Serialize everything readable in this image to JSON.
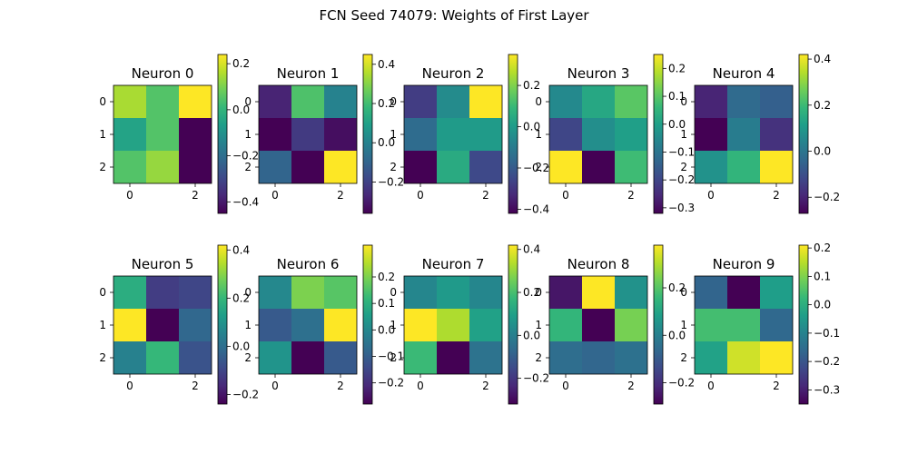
{
  "figure": {
    "title": "FCN Seed 74079: Weights of First Layer"
  },
  "colormap": {
    "name": "viridis",
    "stops": [
      "#440154",
      "#482878",
      "#3e4989",
      "#31688e",
      "#26828e",
      "#1f9e89",
      "#35b779",
      "#6ece58",
      "#b5de2b",
      "#fde725"
    ]
  },
  "chart_data": [
    {
      "type": "heatmap",
      "title": "Neuron 0",
      "x_ticks": [
        "0",
        "2"
      ],
      "y_ticks": [
        "0",
        "1",
        "2"
      ],
      "values": [
        [
          0.15,
          0.05,
          0.24
        ],
        [
          -0.05,
          0.05,
          -0.45
        ],
        [
          0.05,
          0.13,
          -0.45
        ]
      ],
      "vmin": -0.45,
      "vmax": 0.24,
      "colorbar_ticks": [
        -0.4,
        -0.2,
        0.0,
        0.2
      ],
      "colorbar_labels": [
        "−0.4",
        "−0.2",
        "0.0",
        "0.2"
      ]
    },
    {
      "type": "heatmap",
      "title": "Neuron 1",
      "x_ticks": [
        "0",
        "2"
      ],
      "y_ticks": [
        "0",
        "1",
        "2"
      ],
      "values": [
        [
          -0.28,
          0.22,
          0.0
        ],
        [
          -0.36,
          -0.22,
          -0.33
        ],
        [
          -0.1,
          -0.36,
          0.45
        ]
      ],
      "vmin": -0.36,
      "vmax": 0.45,
      "colorbar_ticks": [
        -0.2,
        0.0,
        0.2,
        0.4
      ],
      "colorbar_labels": [
        "−0.2",
        "0.0",
        "0.2",
        "0.4"
      ]
    },
    {
      "type": "heatmap",
      "title": "Neuron 2",
      "x_ticks": [
        "0",
        "2"
      ],
      "y_ticks": [
        "0",
        "1",
        "2"
      ],
      "values": [
        [
          -0.28,
          -0.05,
          0.35
        ],
        [
          -0.15,
          0.0,
          0.0
        ],
        [
          -0.42,
          0.05,
          -0.25
        ]
      ],
      "vmin": -0.42,
      "vmax": 0.35,
      "colorbar_ticks": [
        -0.4,
        -0.2,
        0.0,
        0.2
      ],
      "colorbar_labels": [
        "−0.4",
        "−0.2",
        "0.0",
        "0.2"
      ]
    },
    {
      "type": "heatmap",
      "title": "Neuron 3",
      "x_ticks": [
        "0",
        "2"
      ],
      "y_ticks": [
        "0",
        "1",
        "2"
      ],
      "values": [
        [
          -0.05,
          0.02,
          0.1
        ],
        [
          -0.2,
          -0.04,
          0.0
        ],
        [
          0.25,
          -0.32,
          0.07
        ]
      ],
      "vmin": -0.32,
      "vmax": 0.25,
      "colorbar_ticks": [
        -0.3,
        -0.2,
        -0.1,
        0.0,
        0.1,
        0.2
      ],
      "colorbar_labels": [
        "−0.3",
        "−0.2",
        "−0.1",
        "0.0",
        "0.1",
        "0.2"
      ]
    },
    {
      "type": "heatmap",
      "title": "Neuron 4",
      "x_ticks": [
        "0",
        "2"
      ],
      "y_ticks": [
        "0",
        "1",
        "2"
      ],
      "values": [
        [
          -0.2,
          -0.03,
          -0.06
        ],
        [
          -0.27,
          0.02,
          -0.17
        ],
        [
          0.08,
          0.18,
          0.42
        ]
      ],
      "vmin": -0.27,
      "vmax": 0.42,
      "colorbar_ticks": [
        -0.2,
        0.0,
        0.2,
        0.4
      ],
      "colorbar_labels": [
        "−0.2",
        "0.0",
        "0.2",
        "0.4"
      ]
    },
    {
      "type": "heatmap",
      "title": "Neuron 5",
      "x_ticks": [
        "0",
        "2"
      ],
      "y_ticks": [
        "0",
        "1",
        "2"
      ],
      "values": [
        [
          0.17,
          -0.12,
          -0.1
        ],
        [
          0.42,
          -0.24,
          -0.02
        ],
        [
          0.05,
          0.2,
          -0.07
        ]
      ],
      "vmin": -0.24,
      "vmax": 0.42,
      "colorbar_ticks": [
        -0.2,
        0.0,
        0.2,
        0.4
      ],
      "colorbar_labels": [
        "−0.2",
        "0.0",
        "0.2",
        "0.4"
      ]
    },
    {
      "type": "heatmap",
      "title": "Neuron 6",
      "x_ticks": [
        "0",
        "2"
      ],
      "y_ticks": [
        "0",
        "1",
        "2"
      ],
      "values": [
        [
          0.0,
          0.2,
          0.16
        ],
        [
          -0.11,
          -0.06,
          0.32
        ],
        [
          0.03,
          -0.28,
          -0.11
        ]
      ],
      "vmin": -0.28,
      "vmax": 0.32,
      "colorbar_ticks": [
        -0.2,
        -0.1,
        0.0,
        0.1,
        0.2
      ],
      "colorbar_labels": [
        "−0.2",
        "−0.1",
        "0.0",
        "0.1",
        "0.2"
      ]
    },
    {
      "type": "heatmap",
      "title": "Neuron 7",
      "x_ticks": [
        "0",
        "2"
      ],
      "y_ticks": [
        "0",
        "1",
        "2"
      ],
      "values": [
        [
          0.02,
          0.08,
          0.02
        ],
        [
          0.42,
          0.33,
          0.1
        ],
        [
          0.18,
          -0.32,
          -0.04
        ]
      ],
      "vmin": -0.32,
      "vmax": 0.42,
      "colorbar_ticks": [
        -0.2,
        0.0,
        0.2,
        0.4
      ],
      "colorbar_labels": [
        "−0.2",
        "0.0",
        "0.2",
        "0.4"
      ]
    },
    {
      "type": "heatmap",
      "title": "Neuron 8",
      "x_ticks": [
        "0",
        "2"
      ],
      "y_ticks": [
        "0",
        "1",
        "2"
      ],
      "values": [
        [
          -0.25,
          0.38,
          0.05
        ],
        [
          0.15,
          -0.29,
          0.24
        ],
        [
          -0.05,
          -0.07,
          -0.04
        ]
      ],
      "vmin": -0.29,
      "vmax": 0.38,
      "colorbar_ticks": [
        -0.2,
        0.0,
        0.2
      ],
      "colorbar_labels": [
        "−0.2",
        "0.0",
        "0.2"
      ]
    },
    {
      "type": "heatmap",
      "title": "Neuron 9",
      "x_ticks": [
        "0",
        "2"
      ],
      "y_ticks": [
        "0",
        "1",
        "2"
      ],
      "values": [
        [
          -0.17,
          -0.35,
          -0.04
        ],
        [
          0.04,
          0.04,
          -0.16
        ],
        [
          -0.03,
          0.17,
          0.21
        ]
      ],
      "vmin": -0.35,
      "vmax": 0.21,
      "colorbar_ticks": [
        -0.3,
        -0.2,
        -0.1,
        0.0,
        0.1,
        0.2
      ],
      "colorbar_labels": [
        "−0.3",
        "−0.2",
        "−0.1",
        "0.0",
        "0.1",
        "0.2"
      ]
    }
  ]
}
